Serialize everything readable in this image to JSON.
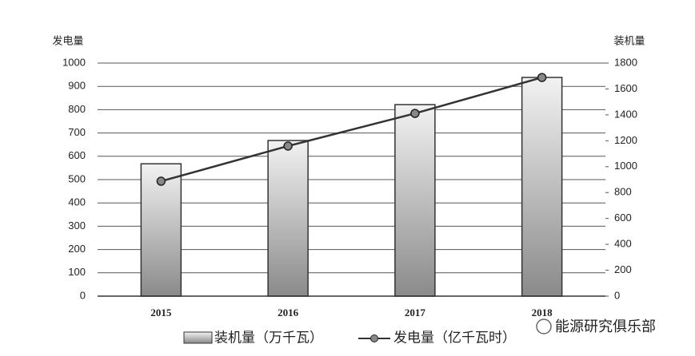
{
  "chart_data": {
    "type": "bar",
    "y_label": "发电量",
    "y2_label": "装机量",
    "categories": [
      "2015",
      "2016",
      "2017",
      "2018"
    ],
    "series": [
      {
        "name": "装机量（万千瓦）",
        "type": "bar",
        "axis": "y2",
        "color": "#999999",
        "values": [
          1022,
          1202,
          1479,
          1689
        ]
      },
      {
        "name": "发电量（亿千瓦时）",
        "type": "line",
        "axis": "y",
        "color": "#333333",
        "values": [
          493,
          644,
          784,
          938
        ]
      }
    ],
    "ylim": [
      0,
      1000
    ],
    "yticks": [
      0,
      100,
      200,
      300,
      400,
      500,
      600,
      700,
      800,
      900,
      1000
    ],
    "y2lim": [
      0,
      1800
    ],
    "y2ticks": [
      0,
      200,
      400,
      600,
      800,
      1000,
      1200,
      1400,
      1600,
      1800
    ],
    "grid": true,
    "watermark": "能源研究俱乐部"
  }
}
